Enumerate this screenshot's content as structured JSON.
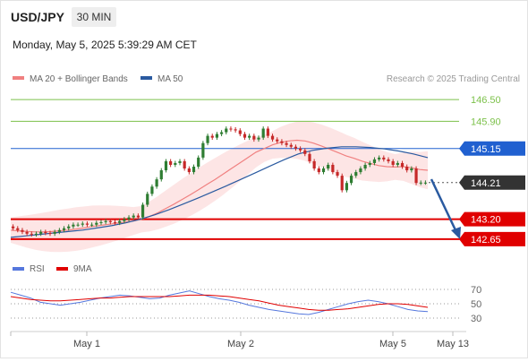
{
  "header": {
    "symbol": "USD/JPY",
    "timeframe": "30 MIN",
    "datetime": "Monday, May 5, 2025 5:39:29 AM CET"
  },
  "legend": {
    "ma20": "MA 20 + Bollinger Bands",
    "ma50": "MA 50",
    "credit": "Research © 2025 Trading Central"
  },
  "colors": {
    "candle_up": "#2e7d32",
    "candle_down": "#c62828",
    "ma20": "#f08080",
    "ma50": "#2a5aa0",
    "bollinger": "#fde0e0",
    "resistance": "#7cc14a",
    "support": "#e00000",
    "pivot": "#2060d0",
    "price_tag": "#333333",
    "rsi": "#5577dd",
    "rsi_ma": "#e00000",
    "arrow": "#2a5aa0"
  },
  "rsi_legend": {
    "rsi": "RSI",
    "ma": "9MA"
  },
  "chart_data": {
    "type": "candlestick",
    "symbol": "USD/JPY",
    "interval": "30 MIN",
    "ylim": [
      142.45,
      146.85
    ],
    "x_ticks": [
      "May 1",
      "May 2",
      "May 5",
      "May 13"
    ],
    "levels": [
      {
        "label": "146.50",
        "value": 146.5,
        "kind": "resistance"
      },
      {
        "label": "145.90",
        "value": 145.9,
        "kind": "resistance"
      },
      {
        "label": "145.15",
        "value": 145.15,
        "kind": "pivot"
      },
      {
        "label": "144.21",
        "value": 144.21,
        "kind": "last"
      },
      {
        "label": "143.20",
        "value": 143.2,
        "kind": "support"
      },
      {
        "label": "142.65",
        "value": 142.65,
        "kind": "support"
      }
    ],
    "close": [
      142.95,
      142.9,
      142.85,
      142.8,
      142.78,
      142.8,
      142.85,
      142.82,
      142.8,
      142.85,
      142.9,
      142.95,
      143.0,
      143.05,
      143.05,
      143.08,
      143.05,
      143.05,
      143.1,
      143.12,
      143.15,
      143.12,
      143.1,
      143.15,
      143.2,
      143.25,
      143.3,
      143.25,
      143.6,
      143.9,
      144.1,
      144.3,
      144.55,
      144.8,
      144.7,
      144.75,
      144.8,
      144.6,
      144.5,
      144.65,
      144.9,
      145.3,
      145.5,
      145.45,
      145.55,
      145.6,
      145.7,
      145.68,
      145.65,
      145.55,
      145.45,
      145.5,
      145.4,
      145.45,
      145.7,
      145.5,
      145.4,
      145.35,
      145.3,
      145.25,
      145.2,
      145.15,
      145.1,
      145.0,
      144.8,
      144.6,
      144.5,
      144.6,
      144.7,
      144.5,
      144.4,
      144.0,
      144.2,
      144.4,
      144.5,
      144.6,
      144.7,
      144.75,
      144.85,
      144.9,
      144.85,
      144.8,
      144.7,
      144.75,
      144.65,
      144.55,
      144.6,
      144.2,
      144.21,
      144.21
    ],
    "ma20": [
      142.9,
      142.88,
      142.86,
      142.85,
      142.85,
      142.86,
      142.88,
      142.9,
      142.93,
      142.96,
      143.0,
      143.03,
      143.06,
      143.09,
      143.12,
      143.15,
      143.2,
      143.28,
      143.38,
      143.5,
      143.62,
      143.75,
      143.88,
      144.02,
      144.16,
      144.3,
      144.45,
      144.6,
      144.75,
      144.9,
      145.05,
      145.15,
      145.25,
      145.32,
      145.36,
      145.38,
      145.36,
      145.3,
      145.22,
      145.13,
      145.04,
      144.95,
      144.88,
      144.8,
      144.74,
      144.68,
      144.65,
      144.64,
      144.65,
      144.62,
      144.57,
      144.55
    ],
    "ma50": [
      142.7,
      142.74,
      142.78,
      142.82,
      142.86,
      142.9,
      142.96,
      143.02,
      143.1,
      143.2,
      143.32,
      143.46,
      143.62,
      143.78,
      143.95,
      144.12,
      144.3,
      144.48,
      144.66,
      144.84,
      145.0,
      145.1,
      145.16,
      145.2,
      145.2,
      145.18,
      145.14,
      145.08,
      145.0,
      144.9
    ],
    "rsi": [
      66,
      62,
      58,
      52,
      50,
      48,
      50,
      52,
      55,
      58,
      60,
      62,
      61,
      59,
      57,
      58,
      62,
      65,
      68,
      64,
      60,
      57,
      55,
      52,
      48,
      45,
      42,
      40,
      38,
      36,
      35,
      38,
      42,
      46,
      50,
      53,
      55,
      53,
      50,
      46,
      42,
      40,
      39
    ],
    "rsi_ma": [
      60,
      58,
      56,
      55,
      54,
      54,
      55,
      56,
      57,
      58,
      58,
      59,
      60,
      60,
      60,
      60,
      60,
      61,
      62,
      62,
      62,
      61,
      60,
      58,
      56,
      54,
      51,
      48,
      46,
      44,
      42,
      41,
      41,
      42,
      43,
      45,
      47,
      49,
      50,
      50,
      49,
      47,
      45
    ],
    "rsi_levels": [
      70,
      50,
      30
    ]
  }
}
